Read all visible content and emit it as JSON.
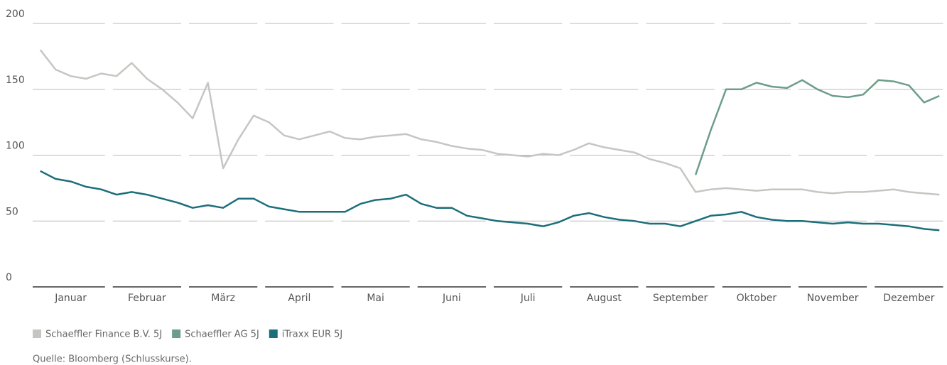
{
  "chart_data": {
    "type": "line",
    "categories": [
      null,
      null,
      "Januar",
      null,
      null,
      null,
      null,
      "Februar",
      null,
      null,
      null,
      null,
      "März",
      null,
      null,
      null,
      null,
      "April",
      null,
      null,
      null,
      null,
      "Mai",
      null,
      null,
      null,
      null,
      "Juni",
      null,
      null,
      null,
      null,
      "Juli",
      null,
      null,
      null,
      null,
      "August",
      null,
      null,
      null,
      null,
      "September",
      null,
      null,
      null,
      null,
      "Oktober",
      null,
      null,
      null,
      null,
      "November",
      null,
      null,
      null,
      null,
      "Dezember",
      null,
      null
    ],
    "series": [
      {
        "name": "Schaeffler Finance B.V. 5J",
        "color": "#c4c7c1",
        "values": [
          180,
          165,
          160,
          158,
          162,
          160,
          170,
          158,
          150,
          140,
          128,
          155,
          90,
          112,
          130,
          125,
          115,
          112,
          115,
          118,
          113,
          112,
          114,
          115,
          116,
          112,
          110,
          107,
          105,
          104,
          101,
          100,
          99,
          101,
          100,
          104,
          109,
          106,
          104,
          102,
          97,
          94,
          90,
          72,
          74,
          75,
          74,
          73,
          74,
          74,
          74,
          72,
          71,
          72,
          72,
          73,
          74,
          72,
          71,
          70
        ]
      },
      {
        "name": "Schaeffler AG 5J",
        "color": "#6d9d89",
        "values": [
          null,
          null,
          null,
          null,
          null,
          null,
          null,
          null,
          null,
          null,
          null,
          null,
          null,
          null,
          null,
          null,
          null,
          null,
          null,
          null,
          null,
          null,
          null,
          null,
          null,
          null,
          null,
          null,
          null,
          null,
          null,
          null,
          null,
          null,
          null,
          null,
          null,
          null,
          null,
          null,
          null,
          null,
          null,
          85,
          119,
          150,
          150,
          155,
          152,
          151,
          157,
          150,
          145,
          144,
          146,
          157,
          156,
          153,
          140,
          145
        ]
      },
      {
        "name": "iTraxx EUR 5J",
        "color": "#1b6e7a",
        "values": [
          88,
          82,
          80,
          76,
          74,
          70,
          72,
          70,
          67,
          64,
          60,
          62,
          60,
          67,
          67,
          61,
          59,
          57,
          57,
          57,
          57,
          63,
          66,
          67,
          70,
          63,
          60,
          60,
          54,
          52,
          50,
          49,
          48,
          46,
          49,
          54,
          56,
          53,
          51,
          50,
          48,
          48,
          46,
          50,
          54,
          55,
          57,
          53,
          51,
          50,
          50,
          49,
          48,
          49,
          48,
          48,
          47,
          46,
          44,
          43
        ]
      }
    ],
    "ylim": [
      0,
      200
    ],
    "yticks": [
      0,
      50,
      100,
      150,
      200
    ],
    "grid": true,
    "legend": "bottom",
    "source": "Quelle: Bloomberg (Schlusskurse)."
  }
}
